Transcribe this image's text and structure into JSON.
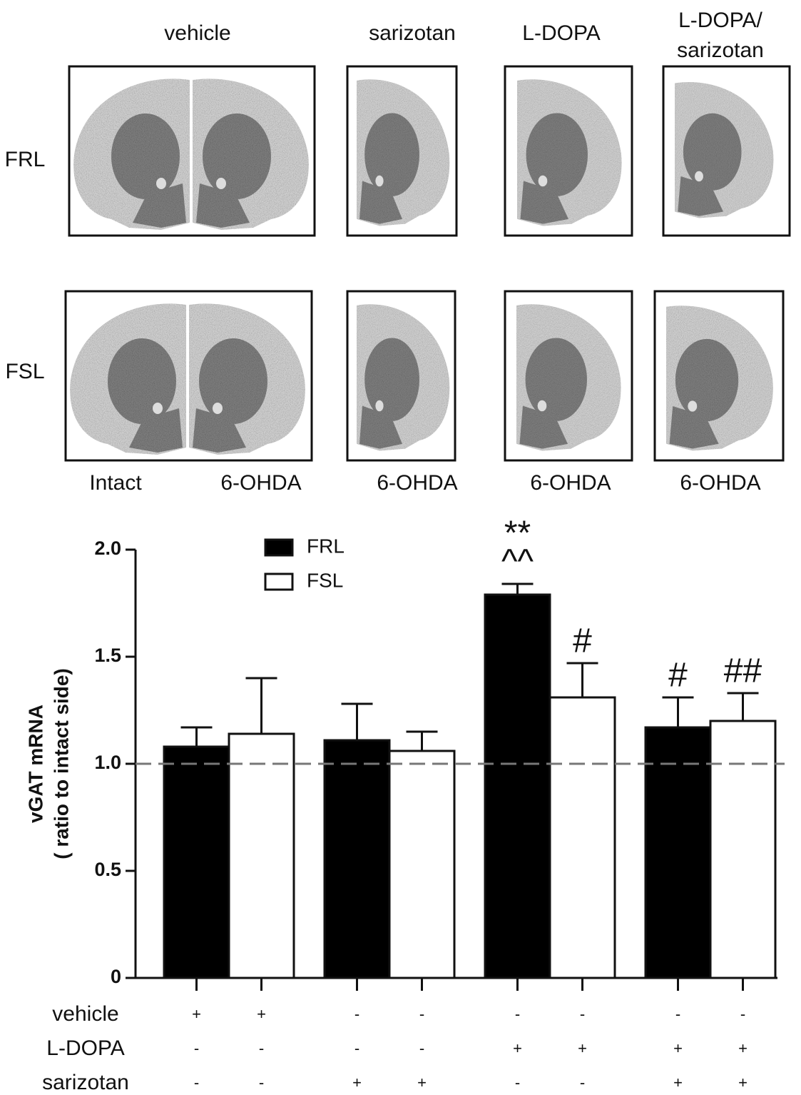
{
  "image_panel": {
    "columns": [
      [
        "vehicle"
      ],
      [
        "sarizotan"
      ],
      [
        "L-DOPA"
      ],
      [
        "L-DOPA/",
        "sarizotan"
      ]
    ],
    "rows": [
      "FRL",
      "FSL"
    ],
    "side_labels": [
      "Intact",
      "6-OHDA",
      "6-OHDA",
      "6-OHDA",
      "6-OHDA"
    ]
  },
  "chart_data": {
    "type": "bar",
    "ylabel": [
      "vGAT mRNA",
      "( ratio to intact side)"
    ],
    "ylim": [
      0,
      2
    ],
    "yticks": [
      0,
      0.5,
      {
        "value": 1,
        "label": "1.0"
      },
      1.5,
      {
        "value": 2,
        "label": "2.0"
      }
    ],
    "reference_line": 1,
    "legend": "upper center",
    "series": [
      {
        "name": "FRL",
        "color": "#000000",
        "values": [
          1.08,
          1.11,
          1.79,
          1.17
        ],
        "errors": [
          0.09,
          0.17,
          0.05,
          0.14
        ],
        "annotations": [
          null,
          null,
          [
            "**",
            "^^"
          ],
          [
            "#"
          ]
        ]
      },
      {
        "name": "FSL",
        "color": "#ffffff",
        "values": [
          1.14,
          1.06,
          1.31,
          1.2
        ],
        "errors": [
          0.26,
          0.09,
          0.16,
          0.13
        ],
        "annotations": [
          null,
          null,
          [
            "#"
          ],
          [
            "##"
          ]
        ]
      }
    ],
    "treatment_table": [
      {
        "label": "vehicle",
        "signs": [
          "+",
          "+",
          "-",
          "-",
          "-",
          "-",
          "-",
          "-"
        ]
      },
      {
        "label": "L-DOPA",
        "signs": [
          "-",
          "-",
          "-",
          "-",
          "+",
          "+",
          "+",
          "+"
        ]
      },
      {
        "label": "sarizotan",
        "signs": [
          "-",
          "-",
          "+",
          "+",
          "-",
          "-",
          "+",
          "+"
        ]
      }
    ]
  }
}
